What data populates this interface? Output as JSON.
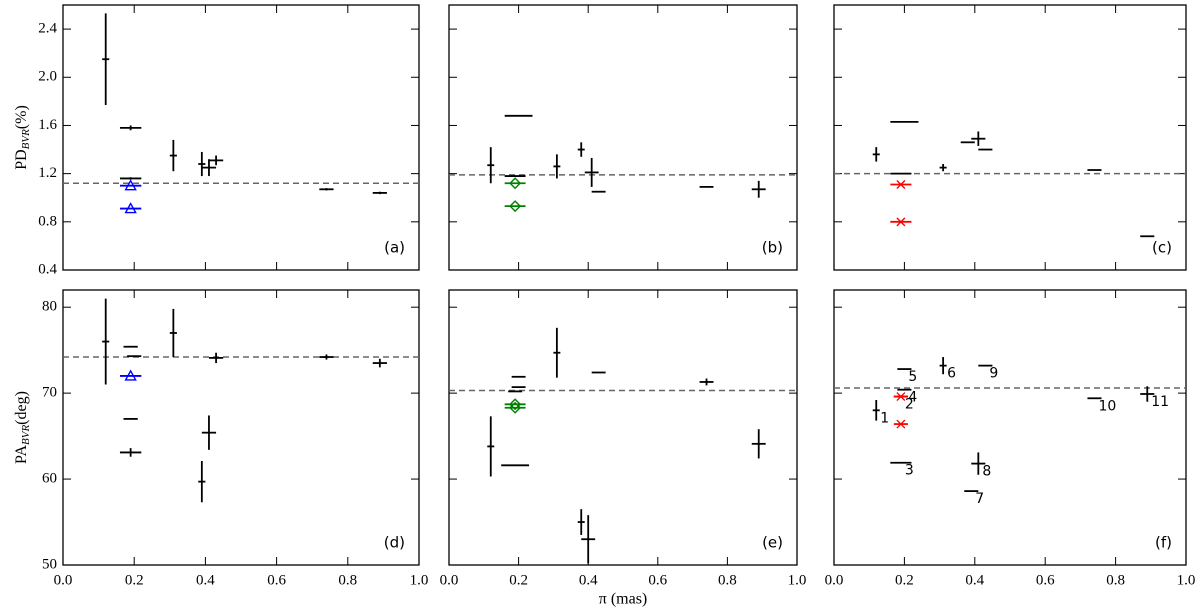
{
  "chart_data": [
    {
      "type": "errorbar",
      "annotation": "(a)",
      "ylabel": {
        "main": "PD",
        "sub": "BVR",
        "unit": "(%)"
      },
      "xlim": [
        0,
        1
      ],
      "ylim": [
        0.4,
        2.6
      ],
      "xticks": [
        {
          "value": 0,
          "label": "0.0"
        },
        0.2,
        0.4,
        0.6,
        0.8,
        {
          "value": 1,
          "label": "1.0"
        }
      ],
      "yticks": [
        0.4,
        0.8,
        1.2,
        1.6,
        {
          "value": 2,
          "label": "2.0"
        },
        2.4
      ],
      "show_xticklabels": false,
      "show_yticklabels": true,
      "reference": 1.12,
      "points": [
        {
          "x": 0.12,
          "y": 2.15,
          "yerr": 0.38,
          "xerr": 0.01
        },
        {
          "x": 0.19,
          "y": 1.58,
          "xerr": 0.03,
          "yerr": 0.02
        },
        {
          "x": 0.19,
          "y": 1.16,
          "xerr": 0.03,
          "yerr": 0.01
        },
        {
          "x": 0.31,
          "y": 1.35,
          "yerr": 0.13,
          "xerr": 0.01
        },
        {
          "x": 0.39,
          "y": 1.28,
          "yerr": 0.1,
          "xerr": 0.01
        },
        {
          "x": 0.41,
          "y": 1.25,
          "yerr": 0.07,
          "xerr": 0.02
        },
        {
          "x": 0.43,
          "y": 1.31,
          "yerr": 0.04,
          "xerr": 0.02
        },
        {
          "x": 0.74,
          "y": 1.07,
          "xerr": 0.02,
          "yerr": 0.01
        },
        {
          "x": 0.89,
          "y": 1.04,
          "xerr": 0.02,
          "yerr": 0.01
        }
      ],
      "markers": {
        "style": "triangle",
        "color": "#0000ff",
        "points": [
          {
            "x": 0.19,
            "y": 1.1,
            "xerr": 0.03
          },
          {
            "x": 0.19,
            "y": 0.91,
            "xerr": 0.03
          }
        ]
      }
    },
    {
      "type": "errorbar",
      "annotation": "(b)",
      "xlim": [
        0,
        1
      ],
      "ylim": [
        0.4,
        2.6
      ],
      "xticks": [
        {
          "value": 0,
          "label": "0.0"
        },
        0.2,
        0.4,
        0.6,
        0.8,
        {
          "value": 1,
          "label": "1.0"
        }
      ],
      "yticks": [
        0.4,
        0.8,
        1.2,
        1.6,
        {
          "value": 2,
          "label": "2.0"
        },
        2.4
      ],
      "show_xticklabels": false,
      "show_yticklabels": false,
      "reference": 1.19,
      "points": [
        {
          "x": 0.12,
          "y": 1.27,
          "yerr": 0.15,
          "xerr": 0.01
        },
        {
          "x": 0.2,
          "y": 1.68,
          "xerr": 0.04
        },
        {
          "x": 0.19,
          "y": 1.18,
          "xerr": 0.03
        },
        {
          "x": 0.31,
          "y": 1.26,
          "yerr": 0.1,
          "xerr": 0.01
        },
        {
          "x": 0.38,
          "y": 1.4,
          "yerr": 0.06,
          "xerr": 0.01
        },
        {
          "x": 0.41,
          "y": 1.21,
          "yerr": 0.12,
          "xerr": 0.02
        },
        {
          "x": 0.43,
          "y": 1.05,
          "xerr": 0.02
        },
        {
          "x": 0.74,
          "y": 1.09,
          "xerr": 0.02
        },
        {
          "x": 0.89,
          "y": 1.07,
          "yerr": 0.07,
          "xerr": 0.02
        }
      ],
      "markers": {
        "style": "diamond",
        "color": "#008000",
        "points": [
          {
            "x": 0.19,
            "y": 1.12,
            "xerr": 0.03
          },
          {
            "x": 0.19,
            "y": 0.93,
            "xerr": 0.03
          }
        ]
      }
    },
    {
      "type": "errorbar",
      "annotation": "(c)",
      "xlim": [
        0,
        1
      ],
      "ylim": [
        0.4,
        2.6
      ],
      "xticks": [
        {
          "value": 0,
          "label": "0.0"
        },
        0.2,
        0.4,
        0.6,
        0.8,
        {
          "value": 1,
          "label": "1.0"
        }
      ],
      "yticks": [
        0.4,
        0.8,
        1.2,
        1.6,
        {
          "value": 2,
          "label": "2.0"
        },
        2.4
      ],
      "show_xticklabels": false,
      "show_yticklabels": false,
      "reference": 1.2,
      "points": [
        {
          "x": 0.12,
          "y": 1.36,
          "yerr": 0.06,
          "xerr": 0.01
        },
        {
          "x": 0.2,
          "y": 1.63,
          "xerr": 0.04
        },
        {
          "x": 0.19,
          "y": 1.2,
          "xerr": 0.03
        },
        {
          "x": 0.31,
          "y": 1.25,
          "yerr": 0.03,
          "xerr": 0.01
        },
        {
          "x": 0.38,
          "y": 1.46,
          "xerr": 0.02
        },
        {
          "x": 0.41,
          "y": 1.49,
          "yerr": 0.06,
          "xerr": 0.02
        },
        {
          "x": 0.43,
          "y": 1.4,
          "xerr": 0.02
        },
        {
          "x": 0.74,
          "y": 1.23,
          "xerr": 0.02
        },
        {
          "x": 0.89,
          "y": 0.68,
          "xerr": 0.02
        }
      ],
      "markers": {
        "style": "x",
        "color": "#ff0000",
        "points": [
          {
            "x": 0.19,
            "y": 1.11,
            "xerr": 0.03
          },
          {
            "x": 0.19,
            "y": 0.8,
            "xerr": 0.03
          }
        ]
      }
    },
    {
      "type": "errorbar",
      "annotation": "(d)",
      "ylabel": {
        "main": "PA",
        "sub": "BVR",
        "unit": "(deg)"
      },
      "xlim": [
        0,
        1
      ],
      "ylim": [
        50,
        82
      ],
      "xticks": [
        {
          "value": 0,
          "label": "0.0"
        },
        0.2,
        0.4,
        0.6,
        0.8,
        {
          "value": 1,
          "label": "1.0"
        }
      ],
      "yticks": [
        50,
        60,
        70,
        80
      ],
      "show_xticklabels": true,
      "show_yticklabels": true,
      "reference": 74.2,
      "points": [
        {
          "x": 0.12,
          "y": 76,
          "yerr": 5,
          "xerr": 0.01
        },
        {
          "x": 0.19,
          "y": 75.4,
          "xerr": 0.02
        },
        {
          "x": 0.2,
          "y": 74.3,
          "xerr": 0.02
        },
        {
          "x": 0.19,
          "y": 67,
          "xerr": 0.02
        },
        {
          "x": 0.19,
          "y": 63.1,
          "xerr": 0.03,
          "yerr": 0.5
        },
        {
          "x": 0.31,
          "y": 77,
          "yerr": 2.8,
          "xerr": 0.01
        },
        {
          "x": 0.39,
          "y": 59.7,
          "yerr": 2.4,
          "xerr": 0.01
        },
        {
          "x": 0.41,
          "y": 65.4,
          "yerr": 2,
          "xerr": 0.02
        },
        {
          "x": 0.43,
          "y": 74.1,
          "yerr": 0.6,
          "xerr": 0.02
        },
        {
          "x": 0.74,
          "y": 74.2,
          "xerr": 0.02,
          "yerr": 0.3
        },
        {
          "x": 0.89,
          "y": 73.5,
          "yerr": 0.5,
          "xerr": 0.02
        }
      ],
      "markers": {
        "style": "triangle",
        "color": "#0000ff",
        "points": [
          {
            "x": 0.19,
            "y": 72,
            "xerr": 0.03
          }
        ]
      }
    },
    {
      "type": "errorbar",
      "annotation": "(e)",
      "xlabel": "π (mas)",
      "xlim": [
        0,
        1
      ],
      "ylim": [
        50,
        82
      ],
      "xticks": [
        {
          "value": 0,
          "label": "0.0"
        },
        0.2,
        0.4,
        0.6,
        0.8,
        {
          "value": 1,
          "label": "1.0"
        }
      ],
      "yticks": [
        50,
        60,
        70,
        80
      ],
      "show_xticklabels": true,
      "show_yticklabels": false,
      "reference": 70.3,
      "points": [
        {
          "x": 0.12,
          "y": 63.8,
          "yerr": 3.5,
          "xerr": 0.01
        },
        {
          "x": 0.19,
          "y": 61.6,
          "xerr": 0.04
        },
        {
          "x": 0.19,
          "y": 70.2,
          "xerr": 0.02
        },
        {
          "x": 0.2,
          "y": 70.7,
          "xerr": 0.02
        },
        {
          "x": 0.2,
          "y": 71.9,
          "xerr": 0.02
        },
        {
          "x": 0.31,
          "y": 74.7,
          "yerr": 2.9,
          "xerr": 0.01
        },
        {
          "x": 0.38,
          "y": 55,
          "yerr": 1.5,
          "xerr": 0.01
        },
        {
          "x": 0.4,
          "y": 53,
          "yerr": 2.8,
          "xerr": 0.02
        },
        {
          "x": 0.43,
          "y": 72.4,
          "xerr": 0.02
        },
        {
          "x": 0.74,
          "y": 71.3,
          "yerr": 0.4,
          "xerr": 0.02
        },
        {
          "x": 0.89,
          "y": 64.1,
          "yerr": 1.7,
          "xerr": 0.02
        }
      ],
      "markers": {
        "style": "diamond",
        "color": "#008000",
        "points": [
          {
            "x": 0.19,
            "y": 68.7,
            "xerr": 0.03
          },
          {
            "x": 0.19,
            "y": 68.3,
            "xerr": 0.03
          }
        ]
      }
    },
    {
      "type": "errorbar",
      "annotation": "(f)",
      "xlim": [
        0,
        1
      ],
      "ylim": [
        50,
        82
      ],
      "xticks": [
        {
          "value": 0,
          "label": "0.0"
        },
        0.2,
        0.4,
        0.6,
        0.8,
        {
          "value": 1,
          "label": "1.0"
        }
      ],
      "yticks": [
        50,
        60,
        70,
        80
      ],
      "show_xticklabels": true,
      "show_yticklabels": false,
      "reference": 70.6,
      "points": [
        {
          "x": 0.12,
          "y": 68,
          "yerr": 1.2,
          "xerr": 0.01,
          "label": "1"
        },
        {
          "x": 0.19,
          "y": 69.6,
          "xerr": 0.02,
          "label": "2"
        },
        {
          "x": 0.19,
          "y": 61.9,
          "xerr": 0.03,
          "label": "3"
        },
        {
          "x": 0.2,
          "y": 70.4,
          "xerr": 0.02,
          "label": "4"
        },
        {
          "x": 0.2,
          "y": 72.8,
          "xerr": 0.02,
          "label": "5"
        },
        {
          "x": 0.31,
          "y": 73.2,
          "yerr": 1,
          "xerr": 0.01,
          "label": "6"
        },
        {
          "x": 0.39,
          "y": 58.6,
          "xerr": 0.02,
          "label": "7"
        },
        {
          "x": 0.41,
          "y": 61.8,
          "yerr": 1.3,
          "xerr": 0.02,
          "label": "8"
        },
        {
          "x": 0.43,
          "y": 73.2,
          "xerr": 0.02,
          "label": "9"
        },
        {
          "x": 0.74,
          "y": 69.4,
          "xerr": 0.02,
          "label": "10"
        },
        {
          "x": 0.89,
          "y": 69.9,
          "yerr": 0.9,
          "xerr": 0.02,
          "label": "11"
        }
      ],
      "markers": {
        "style": "x",
        "color": "#ff0000",
        "points": [
          {
            "x": 0.19,
            "y": 69.6,
            "xerr": 0.02
          },
          {
            "x": 0.19,
            "y": 66.4,
            "xerr": 0.02
          }
        ]
      }
    }
  ]
}
